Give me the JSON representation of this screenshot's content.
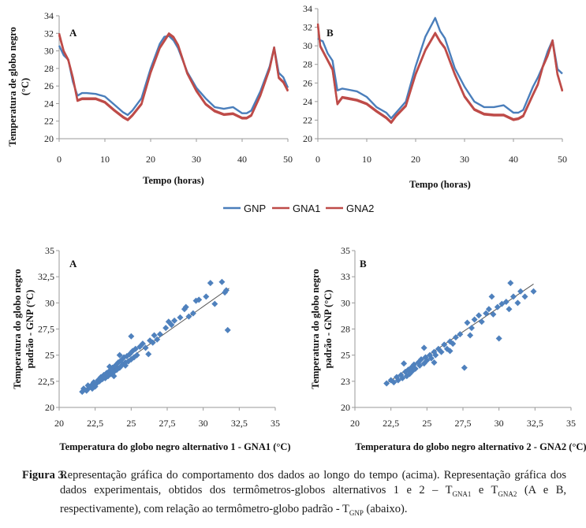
{
  "chart_data": [
    {
      "id": "top-A",
      "type": "line",
      "panel": "A",
      "xlabel": "Tempo (horas)",
      "ylabel": "Temperatura de globo negro (°C)",
      "xlim": [
        0,
        50
      ],
      "ylim": [
        20,
        34
      ],
      "xticks": [
        0,
        10,
        20,
        30,
        40,
        50
      ],
      "yticks": [
        20,
        22,
        24,
        26,
        28,
        30,
        32,
        34
      ],
      "series": [
        {
          "name": "GNP",
          "color": "#4a7ebb",
          "x": [
            0,
            1,
            2,
            3,
            4,
            5,
            6,
            8,
            10,
            12,
            14,
            15,
            16,
            18,
            20,
            22,
            23,
            24,
            25,
            26,
            28,
            30,
            32,
            34,
            36,
            38,
            40,
            41,
            42,
            44,
            46,
            47,
            48,
            49,
            50
          ],
          "y": [
            30.6,
            29.5,
            29.0,
            26.5,
            24.9,
            25.2,
            25.2,
            25.1,
            24.8,
            23.9,
            23.0,
            22.7,
            23.2,
            24.6,
            28.0,
            30.8,
            31.6,
            31.7,
            31.2,
            30.3,
            27.6,
            25.8,
            24.6,
            23.6,
            23.4,
            23.6,
            22.9,
            22.9,
            23.2,
            25.4,
            28.2,
            30.4,
            27.5,
            27.0,
            25.8
          ]
        },
        {
          "name": "GNA1",
          "color": "#be4b48",
          "x": [
            0,
            1,
            2,
            3,
            4,
            5,
            6,
            8,
            10,
            12,
            14,
            15,
            16,
            18,
            20,
            22,
            23,
            24,
            25,
            26,
            28,
            30,
            32,
            34,
            36,
            38,
            40,
            41,
            42,
            44,
            46,
            47,
            48,
            49,
            50
          ],
          "y": [
            32.0,
            30.0,
            29.0,
            27.0,
            24.4,
            24.6,
            24.6,
            24.6,
            24.2,
            23.3,
            22.5,
            22.2,
            22.7,
            24.0,
            27.6,
            30.4,
            31.2,
            32.0,
            31.6,
            30.7,
            27.5,
            25.5,
            24.0,
            23.2,
            22.8,
            22.9,
            22.4,
            22.4,
            22.7,
            25.0,
            28.0,
            30.4,
            27.0,
            26.5,
            25.5
          ]
        },
        {
          "name": "GNA2",
          "color": "#be4b48",
          "x": [
            0,
            1,
            2,
            3,
            4,
            5,
            6,
            8,
            10,
            12,
            14,
            15,
            16,
            18,
            20,
            22,
            23,
            24,
            25,
            26,
            28,
            30,
            32,
            34,
            36,
            38,
            40,
            41,
            42,
            44,
            46,
            47,
            48,
            49,
            50
          ],
          "y": [
            31.8,
            29.9,
            28.9,
            26.9,
            24.3,
            24.5,
            24.5,
            24.5,
            24.1,
            23.2,
            22.4,
            22.1,
            22.6,
            23.9,
            27.5,
            30.3,
            31.1,
            31.9,
            31.5,
            30.6,
            27.4,
            25.4,
            23.9,
            23.1,
            22.7,
            22.8,
            22.3,
            22.3,
            22.6,
            24.9,
            27.9,
            30.3,
            26.9,
            26.4,
            25.4
          ]
        }
      ]
    },
    {
      "id": "top-B",
      "type": "line",
      "panel": "B",
      "xlabel": "Tempo (horas)",
      "xlim": [
        0,
        50
      ],
      "ylim": [
        20,
        34
      ],
      "xticks": [
        0,
        10,
        20,
        30,
        40,
        50
      ],
      "series": [
        {
          "name": "GNP",
          "color": "#4a7ebb",
          "x": [
            0,
            0.5,
            1,
            2,
            3,
            4,
            5,
            6,
            8,
            10,
            12,
            14,
            15,
            16,
            18,
            20,
            22,
            23,
            24,
            25,
            26,
            28,
            30,
            32,
            34,
            36,
            38,
            40,
            41,
            42,
            44,
            45,
            46,
            47,
            48,
            49,
            50
          ],
          "y": [
            30.8,
            30.6,
            30.5,
            29.2,
            28.4,
            25.2,
            25.4,
            25.3,
            25.1,
            24.5,
            23.4,
            22.8,
            22.2,
            22.8,
            24.0,
            27.8,
            31.0,
            32.0,
            33.0,
            31.6,
            30.8,
            27.6,
            25.6,
            24.0,
            23.4,
            23.4,
            23.6,
            22.8,
            22.8,
            23.1,
            25.6,
            26.6,
            27.8,
            29.4,
            30.6,
            27.5,
            27.0
          ]
        },
        {
          "name": "GNA1",
          "color": "#be4b48",
          "x": [
            0,
            0.5,
            1,
            2,
            3,
            4,
            5,
            6,
            8,
            10,
            12,
            14,
            15,
            16,
            18,
            20,
            22,
            23,
            24,
            25,
            26,
            28,
            30,
            32,
            34,
            36,
            38,
            40,
            41,
            42,
            44,
            45,
            46,
            47,
            48,
            49,
            50
          ],
          "y": [
            32.4,
            30.0,
            29.5,
            28.5,
            27.5,
            23.8,
            24.5,
            24.4,
            24.2,
            23.8,
            23.0,
            22.3,
            21.8,
            22.5,
            23.6,
            27.0,
            29.6,
            30.5,
            31.4,
            30.5,
            29.8,
            27.0,
            24.6,
            23.2,
            22.7,
            22.6,
            22.6,
            22.1,
            22.2,
            22.5,
            24.8,
            25.9,
            27.8,
            29.0,
            30.6,
            27.0,
            25.2
          ]
        },
        {
          "name": "GNA2",
          "color": "#be4b48",
          "x": [
            0,
            0.5,
            1,
            2,
            3,
            4,
            5,
            6,
            8,
            10,
            12,
            14,
            15,
            16,
            18,
            20,
            22,
            23,
            24,
            25,
            26,
            28,
            30,
            32,
            34,
            36,
            38,
            40,
            41,
            42,
            44,
            45,
            46,
            47,
            48,
            49,
            50
          ],
          "y": [
            32.2,
            29.9,
            29.4,
            28.4,
            27.4,
            23.7,
            24.4,
            24.3,
            24.1,
            23.7,
            22.9,
            22.2,
            21.7,
            22.4,
            23.5,
            26.9,
            29.5,
            30.4,
            31.3,
            30.4,
            29.7,
            26.9,
            24.5,
            23.1,
            22.6,
            22.5,
            22.5,
            22.0,
            22.1,
            22.4,
            24.7,
            25.8,
            27.7,
            28.9,
            30.5,
            26.9,
            25.1
          ]
        }
      ]
    },
    {
      "id": "bottom-A",
      "type": "scatter",
      "panel": "A",
      "xlabel": "Temperatura do globo negro alternativo 1 - GNA1 (°C)",
      "ylabel": "Temperatura do globo negro padrão - GNP (°C)",
      "xlim": [
        20,
        35
      ],
      "ylim": [
        20,
        35
      ],
      "xtick_labels": [
        "20",
        "22,5",
        "25",
        "27,5",
        "30",
        "32,5",
        "35"
      ],
      "ytick_labels": [
        "20",
        "22,5",
        "25",
        "27,5",
        "30",
        "32,5",
        "35"
      ],
      "color": "#4f81bd",
      "trendline": [
        [
          21.6,
          21.5
        ],
        [
          31.8,
          31.4
        ]
      ],
      "points": [
        [
          21.6,
          21.5
        ],
        [
          21.7,
          21.8
        ],
        [
          21.9,
          21.6
        ],
        [
          22.0,
          22.1
        ],
        [
          22.1,
          21.9
        ],
        [
          22.3,
          22.2
        ],
        [
          22.4,
          22.4
        ],
        [
          22.5,
          22.0
        ],
        [
          22.6,
          22.3
        ],
        [
          22.7,
          22.6
        ],
        [
          22.8,
          22.5
        ],
        [
          22.9,
          22.9
        ],
        [
          23.0,
          22.7
        ],
        [
          23.1,
          23.1
        ],
        [
          23.2,
          22.8
        ],
        [
          23.3,
          23.3
        ],
        [
          23.4,
          23.0
        ],
        [
          23.5,
          23.5
        ],
        [
          23.6,
          23.2
        ],
        [
          23.7,
          23.8
        ],
        [
          23.8,
          23.4
        ],
        [
          23.9,
          24.0
        ],
        [
          24.0,
          23.6
        ],
        [
          24.1,
          24.3
        ],
        [
          24.2,
          23.8
        ],
        [
          24.3,
          24.5
        ],
        [
          24.4,
          24.1
        ],
        [
          24.5,
          24.8
        ],
        [
          24.6,
          24.3
        ],
        [
          24.7,
          24.9
        ],
        [
          24.8,
          24.4
        ],
        [
          24.9,
          25.1
        ],
        [
          25.0,
          24.6
        ],
        [
          25.1,
          25.4
        ],
        [
          25.2,
          24.8
        ],
        [
          25.3,
          25.6
        ],
        [
          25.4,
          25.0
        ],
        [
          25.6,
          25.8
        ],
        [
          25.8,
          26.1
        ],
        [
          26.0,
          25.7
        ],
        [
          26.3,
          26.4
        ],
        [
          26.5,
          26.2
        ],
        [
          26.6,
          26.9
        ],
        [
          26.8,
          26.5
        ],
        [
          27.0,
          27.0
        ],
        [
          27.4,
          27.6
        ],
        [
          27.6,
          28.2
        ],
        [
          27.8,
          27.9
        ],
        [
          28.0,
          28.3
        ],
        [
          28.4,
          28.6
        ],
        [
          28.7,
          29.4
        ],
        [
          28.8,
          29.6
        ],
        [
          29.0,
          28.7
        ],
        [
          29.3,
          29.0
        ],
        [
          29.5,
          30.2
        ],
        [
          29.7,
          30.3
        ],
        [
          30.2,
          30.6
        ],
        [
          30.5,
          31.9
        ],
        [
          30.8,
          29.9
        ],
        [
          31.3,
          32.0
        ],
        [
          31.5,
          31.0
        ],
        [
          31.6,
          31.2
        ],
        [
          31.7,
          27.4
        ],
        [
          24.2,
          25.0
        ],
        [
          24.6,
          24.0
        ],
        [
          22.3,
          21.8
        ],
        [
          23.5,
          23.9
        ],
        [
          25.0,
          26.8
        ],
        [
          23.8,
          23.0
        ],
        [
          26.2,
          25.1
        ]
      ]
    },
    {
      "id": "bottom-B",
      "type": "scatter",
      "panel": "B",
      "xlabel": "Temperatura do globo negro alternativo 2 - GNA2 (°C)",
      "ylabel": "Temperatura do globo negro padrão - GNP (°C)",
      "xlim": [
        20,
        35
      ],
      "ylim": [
        20,
        35
      ],
      "xtick_labels": [
        "20",
        "22,5",
        "25",
        "27,5",
        "30",
        "32,5",
        "35"
      ],
      "ytick_labels": [
        "20",
        "23",
        "25",
        "28",
        "30",
        "33",
        "35"
      ],
      "color": "#4f81bd",
      "trendline": [
        [
          22.2,
          22.3
        ],
        [
          32.4,
          31.8
        ]
      ],
      "points": [
        [
          22.2,
          22.3
        ],
        [
          22.5,
          22.6
        ],
        [
          22.7,
          22.4
        ],
        [
          22.9,
          22.9
        ],
        [
          23.0,
          22.6
        ],
        [
          23.2,
          23.1
        ],
        [
          23.3,
          22.8
        ],
        [
          23.5,
          23.4
        ],
        [
          23.6,
          23.0
        ],
        [
          23.7,
          23.6
        ],
        [
          23.8,
          23.2
        ],
        [
          23.9,
          23.8
        ],
        [
          24.0,
          23.5
        ],
        [
          24.1,
          24.1
        ],
        [
          24.2,
          23.7
        ],
        [
          24.4,
          24.3
        ],
        [
          24.5,
          24.0
        ],
        [
          24.6,
          24.6
        ],
        [
          24.8,
          24.2
        ],
        [
          24.9,
          24.8
        ],
        [
          25.0,
          24.5
        ],
        [
          25.2,
          25.0
        ],
        [
          25.3,
          24.7
        ],
        [
          25.5,
          25.3
        ],
        [
          25.6,
          25.0
        ],
        [
          25.8,
          25.6
        ],
        [
          26.0,
          25.3
        ],
        [
          26.2,
          26.0
        ],
        [
          26.4,
          25.6
        ],
        [
          26.6,
          26.3
        ],
        [
          26.8,
          26.1
        ],
        [
          27.0,
          26.7
        ],
        [
          27.3,
          27.0
        ],
        [
          27.6,
          23.8
        ],
        [
          27.8,
          28.1
        ],
        [
          28.1,
          27.6
        ],
        [
          28.3,
          28.4
        ],
        [
          28.6,
          28.8
        ],
        [
          28.8,
          28.2
        ],
        [
          29.1,
          29.0
        ],
        [
          29.3,
          29.4
        ],
        [
          29.6,
          28.9
        ],
        [
          29.9,
          29.6
        ],
        [
          30.0,
          26.6
        ],
        [
          30.2,
          29.9
        ],
        [
          30.5,
          30.1
        ],
        [
          30.7,
          29.4
        ],
        [
          30.8,
          31.9
        ],
        [
          31.0,
          30.6
        ],
        [
          31.3,
          30.0
        ],
        [
          31.5,
          31.1
        ],
        [
          31.8,
          30.6
        ],
        [
          32.4,
          31.1
        ],
        [
          24.8,
          25.7
        ],
        [
          25.5,
          24.3
        ],
        [
          26.6,
          25.4
        ],
        [
          23.4,
          24.2
        ],
        [
          28.0,
          26.9
        ],
        [
          29.5,
          30.6
        ]
      ]
    }
  ],
  "legend": {
    "items": [
      {
        "label": "GNP",
        "color": "#4a7ebb"
      },
      {
        "label": "GNA1",
        "color": "#be4b48"
      },
      {
        "label": "GNA2",
        "color": "#be4b48"
      }
    ]
  },
  "caption": {
    "label": "Figura 3.",
    "part1": "Representação gráfica do comportamento dos dados ao longo do tempo (acima). Representação gráfica dos dados experimentais, obtidos dos termômetros-globos alternativos 1 e 2 – T",
    "sub1": "GNA1",
    "part2": " e T",
    "sub2": "GNA2",
    "part3": " (A e B, respectivamente), com relação ao termômetro-globo padrão - T",
    "sub3": "GNP",
    "part4": " (abaixo)."
  }
}
